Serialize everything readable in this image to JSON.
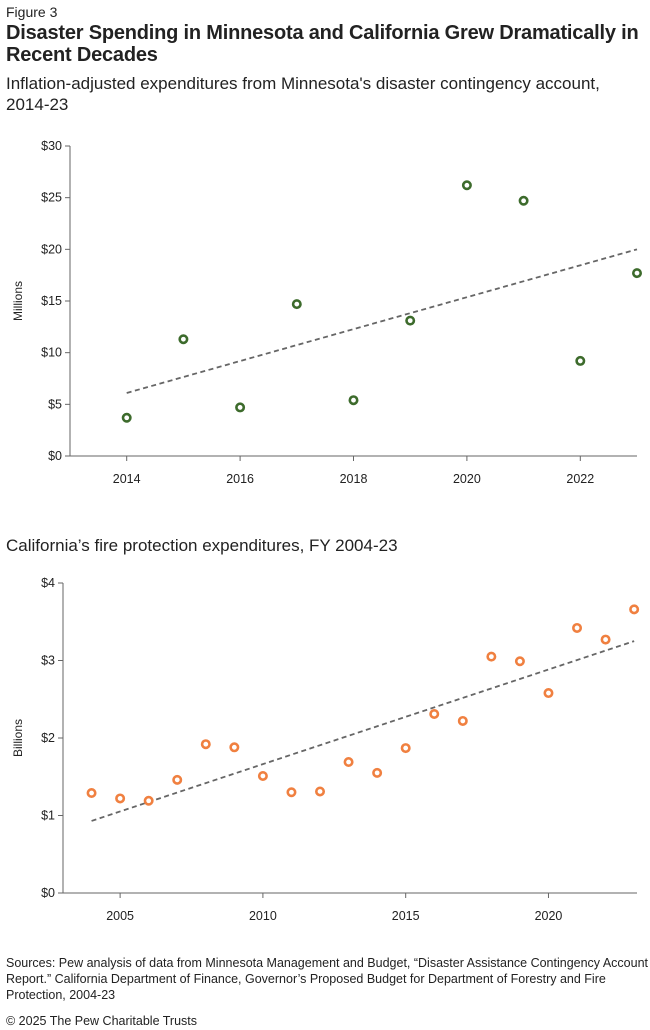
{
  "figure_label": "Figure 3",
  "title": "Disaster Spending in Minnesota and California Grew Dramatically in Recent Decades",
  "source_note": "Sources: Pew analysis of data from Minnesota Management and Budget, “Disaster Assistance Contingency Account Report.” California Department of Finance, Governor’s Proposed Budget for Department of Forestry and Fire Protection, 2004-23",
  "copyright": "© 2025 The Pew Charitable Trusts",
  "colors": {
    "minnesota": "#3d6b2c",
    "california": "#f08040",
    "trendline": "#666666",
    "axis": "#666666"
  },
  "chart_data": [
    {
      "type": "scatter",
      "subtitle": "Inflation-adjusted expenditures from Minnesota's disaster contingency account, 2014-23",
      "ylabel": "Millions",
      "xlim": [
        2013,
        2023
      ],
      "ylim": [
        0,
        30
      ],
      "xticks": [
        2014,
        2016,
        2018,
        2020,
        2022
      ],
      "xtick_labels": [
        "2014",
        "2016",
        "2018",
        "2020",
        "2022"
      ],
      "yticks": [
        0,
        5,
        10,
        15,
        20,
        25,
        30
      ],
      "ytick_labels": [
        "$0",
        "$5",
        "$10",
        "$15",
        "$20",
        "$25",
        "$30"
      ],
      "grid": false,
      "series": [
        {
          "x": [
            2014,
            2015,
            2016,
            2017,
            2018,
            2019,
            2020,
            2021,
            2022,
            2023
          ],
          "y": [
            3.7,
            11.3,
            4.7,
            14.7,
            5.4,
            13.1,
            26.2,
            24.7,
            9.2,
            17.7
          ]
        }
      ],
      "trendline": {
        "x": [
          2014,
          2023
        ],
        "y": [
          6.1,
          20.0
        ]
      }
    },
    {
      "type": "scatter",
      "subtitle": "California’s fire protection expenditures, FY 2004-23",
      "ylabel": "Billions",
      "xlim": [
        2003,
        2023.1
      ],
      "ylim": [
        0,
        4
      ],
      "xticks": [
        2005,
        2010,
        2015,
        2020
      ],
      "xtick_labels": [
        "2005",
        "2010",
        "2015",
        "2020"
      ],
      "yticks": [
        0,
        1,
        2,
        3,
        4
      ],
      "ytick_labels": [
        "$0",
        "$1",
        "$2",
        "$3",
        "$4"
      ],
      "grid": false,
      "series": [
        {
          "x": [
            2004,
            2005,
            2006,
            2007,
            2008,
            2009,
            2010,
            2011,
            2012,
            2013,
            2014,
            2015,
            2016,
            2017,
            2018,
            2019,
            2020,
            2021,
            2022,
            2023
          ],
          "y": [
            1.29,
            1.22,
            1.19,
            1.46,
            1.92,
            1.88,
            1.51,
            1.3,
            1.31,
            1.69,
            1.55,
            1.87,
            2.31,
            2.22,
            3.05,
            2.99,
            2.58,
            3.42,
            3.27,
            3.66
          ]
        }
      ],
      "trendline": {
        "x": [
          2004,
          2023
        ],
        "y": [
          0.93,
          3.25
        ]
      }
    }
  ]
}
